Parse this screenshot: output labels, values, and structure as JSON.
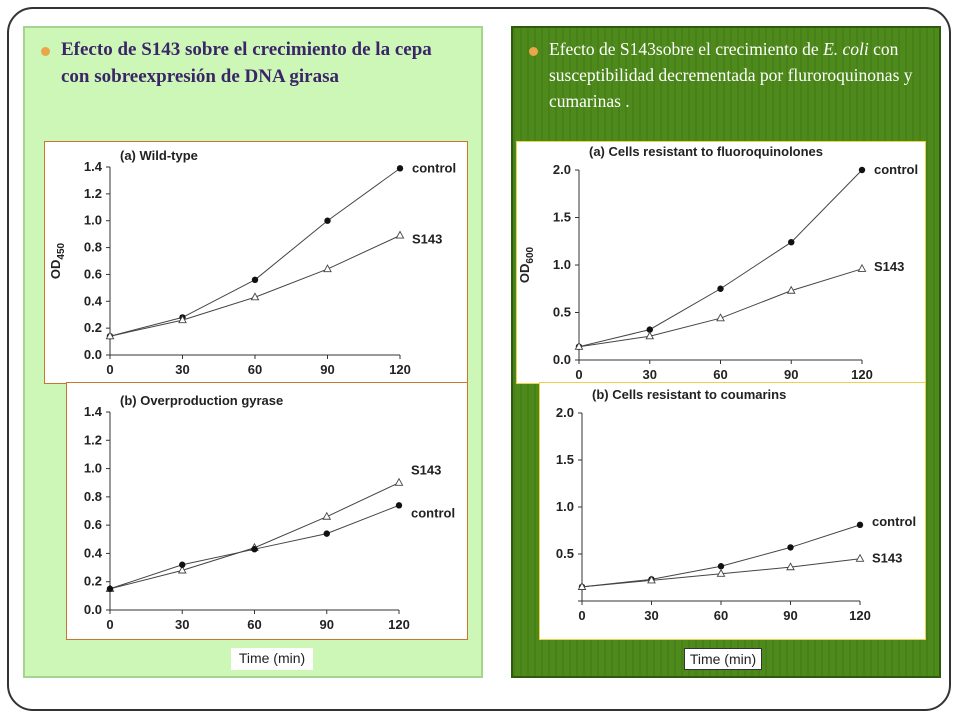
{
  "headings": {
    "left": "Efecto de  S143 sobre el crecimiento de la cepa con sobreexpresión de DNA girasa",
    "right_parts": {
      "a": "Efecto de S143sobre el crecimiento de ",
      "b": "E. coli",
      "c": " con  susceptibilidad decrementada por fluroroquinonas y cumarinas  ."
    }
  },
  "time_label": "Time (min)",
  "chart_data": [
    {
      "type": "line",
      "title": "(a) Wild-type",
      "ylabel": "OD",
      "ylabel_sub": "450",
      "x": [
        0,
        30,
        60,
        90,
        120
      ],
      "xticks": [
        "0",
        "30",
        "60",
        "90",
        "120"
      ],
      "ylim": [
        0,
        1.4
      ],
      "yticks": [
        "0.0",
        "0.2",
        "0.4",
        "0.6",
        "0.8",
        "1.0",
        "1.2",
        "1.4"
      ],
      "series": [
        {
          "name": "control",
          "marker": "filled-circle",
          "values": [
            0.14,
            0.28,
            0.56,
            1.0,
            1.39
          ]
        },
        {
          "name": "S143",
          "marker": "open-triangle",
          "values": [
            0.14,
            0.26,
            0.43,
            0.64,
            0.89
          ]
        }
      ]
    },
    {
      "type": "line",
      "title": "(b) Overproduction gyrase",
      "ylabel": "",
      "ylabel_sub": "",
      "x": [
        0,
        30,
        60,
        90,
        120
      ],
      "xticks": [
        "0",
        "30",
        "60",
        "90",
        "120"
      ],
      "ylim": [
        0,
        1.4
      ],
      "yticks": [
        "0.0",
        "0.2",
        "0.4",
        "0.6",
        "0.8",
        "1.0",
        "1.2",
        "1.4"
      ],
      "series": [
        {
          "name": "S143",
          "marker": "open-triangle",
          "values": [
            0.15,
            0.28,
            0.44,
            0.66,
            0.9
          ]
        },
        {
          "name": "control",
          "marker": "filled-circle",
          "values": [
            0.15,
            0.32,
            0.43,
            0.54,
            0.74
          ]
        }
      ]
    },
    {
      "type": "line",
      "title": "(a) Cells resistant to fluoroquinolones",
      "ylabel": "OD",
      "ylabel_sub": "600",
      "x": [
        0,
        30,
        60,
        90,
        120
      ],
      "xticks": [
        "0",
        "30",
        "60",
        "90",
        "120"
      ],
      "ylim": [
        0,
        2.0
      ],
      "yticks": [
        "0.0",
        "0.5",
        "1.0",
        "1.5",
        "2.0"
      ],
      "series": [
        {
          "name": "control",
          "marker": "filled-circle",
          "values": [
            0.14,
            0.32,
            0.75,
            1.24,
            2.0
          ]
        },
        {
          "name": "S143",
          "marker": "open-triangle",
          "values": [
            0.14,
            0.25,
            0.44,
            0.73,
            0.96
          ]
        }
      ]
    },
    {
      "type": "line",
      "title": "(b) Cells resistant to coumarins",
      "ylabel": "",
      "ylabel_sub": "",
      "x": [
        0,
        30,
        60,
        90,
        120
      ],
      "xticks": [
        "0",
        "30",
        "60",
        "90",
        "120"
      ],
      "ylim": [
        0,
        2.0
      ],
      "yticks": [
        "",
        "0.5",
        "1.0",
        "1.5",
        "2.0"
      ],
      "series": [
        {
          "name": "control",
          "marker": "filled-circle",
          "values": [
            0.15,
            0.23,
            0.37,
            0.57,
            0.81
          ]
        },
        {
          "name": "S143",
          "marker": "open-triangle",
          "values": [
            0.15,
            0.22,
            0.29,
            0.36,
            0.45
          ]
        }
      ]
    }
  ]
}
